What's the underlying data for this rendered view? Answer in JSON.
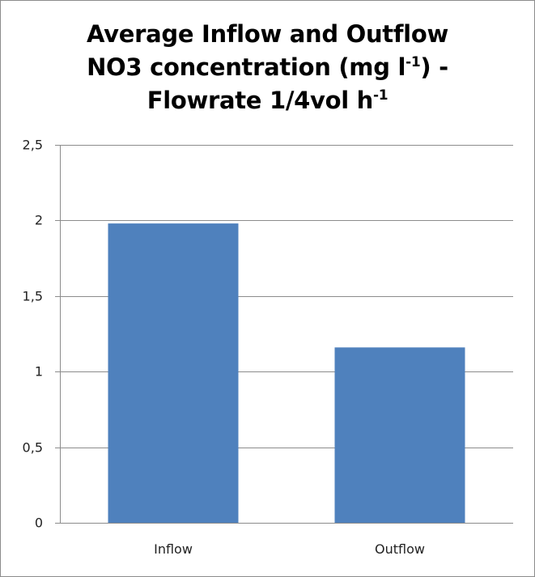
{
  "chart_data": {
    "type": "bar",
    "title": {
      "line1": "Average Inflow and Outflow",
      "line2_main": "NO3 concentration (mg l",
      "line2_sup": "-1",
      "line2_end": ") -",
      "line3_main": "Flowrate 1/4vol h",
      "line3_sup": "-1"
    },
    "categories": [
      "Inflow",
      "Outflow"
    ],
    "values": [
      1.98,
      1.16
    ],
    "ylim": [
      0,
      2.5
    ],
    "yticks": [
      0,
      0.5,
      1,
      1.5,
      2,
      2.5
    ],
    "ytick_labels": [
      "0",
      "0,5",
      "1",
      "1,5",
      "2",
      "2,5"
    ],
    "xlabel": "",
    "ylabel": "",
    "grid": true,
    "legend": "none",
    "bar_color": "#4f81bd",
    "grid_color": "#8c8c8c"
  }
}
